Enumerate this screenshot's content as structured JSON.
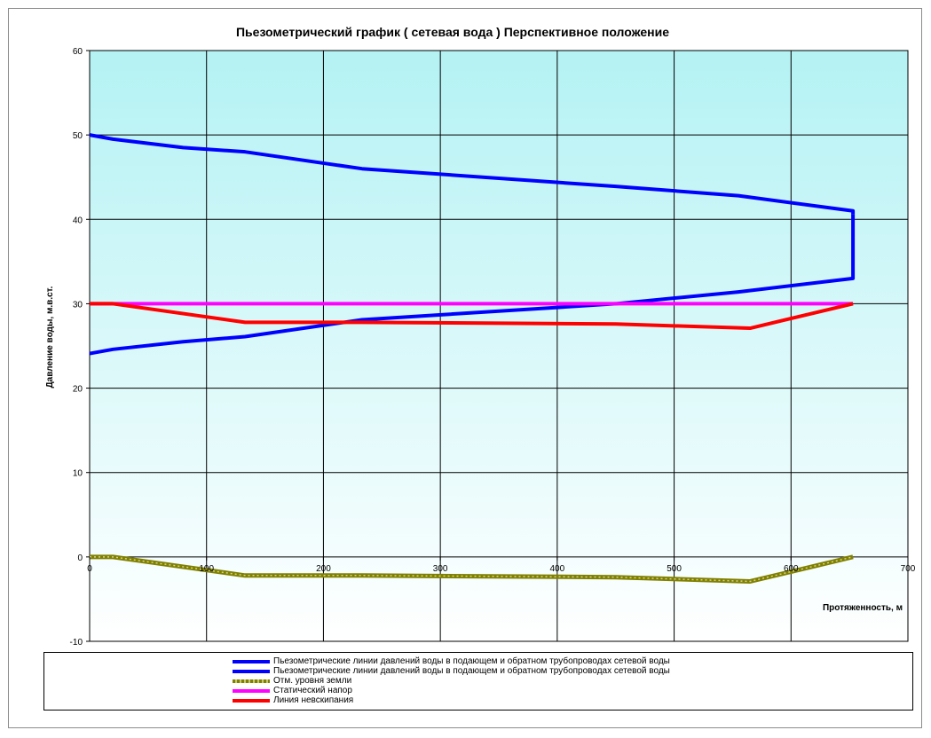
{
  "chart_data": {
    "type": "line",
    "title": "Пьезометрический график  ( сетевая вода ) Перспективное положение",
    "xlabel": "Протяженность, м",
    "ylabel": "Давление воды, м.в.ст.",
    "xlim": [
      0,
      700
    ],
    "ylim": [
      -10,
      60
    ],
    "xticks": [
      0,
      100,
      200,
      300,
      400,
      500,
      600,
      700
    ],
    "yticks": [
      -10,
      0,
      10,
      20,
      30,
      40,
      50,
      60
    ],
    "grid": true,
    "legend_position": "bottom",
    "series": [
      {
        "name": "Пьезометрические линии давлений воды в подающем и обратном трубопроводах сетевой воды",
        "color": "#0000ff",
        "x": [
          0,
          20,
          80,
          133,
          233,
          450,
          555,
          653,
          653
        ],
        "y": [
          50,
          49.5,
          48.5,
          48,
          46,
          43.9,
          42.8,
          41,
          40.6
        ]
      },
      {
        "name": "Пьезометрические линии давлений воды в подающем и обратном трубопроводах сетевой воды",
        "color": "#0000ff",
        "x": [
          0,
          20,
          80,
          133,
          233,
          450,
          555,
          653,
          653
        ],
        "y": [
          24.1,
          24.6,
          25.5,
          26.1,
          28.1,
          30,
          31.4,
          33,
          40.6
        ]
      },
      {
        "name": "Отм. уровня земли",
        "color": "#808000",
        "x": [
          0,
          20,
          133,
          233,
          450,
          565,
          653
        ],
        "y": [
          0,
          0,
          -2.2,
          -2.2,
          -2.4,
          -2.9,
          0
        ]
      },
      {
        "name": "Статический напор",
        "color": "#ff00ff",
        "x": [
          0,
          653
        ],
        "y": [
          30,
          30
        ]
      },
      {
        "name": "Линия невскипания",
        "color": "#ff0000",
        "x": [
          0,
          20,
          133,
          233,
          450,
          565,
          653
        ],
        "y": [
          30,
          30,
          27.8,
          27.8,
          27.6,
          27.1,
          30
        ]
      }
    ]
  }
}
